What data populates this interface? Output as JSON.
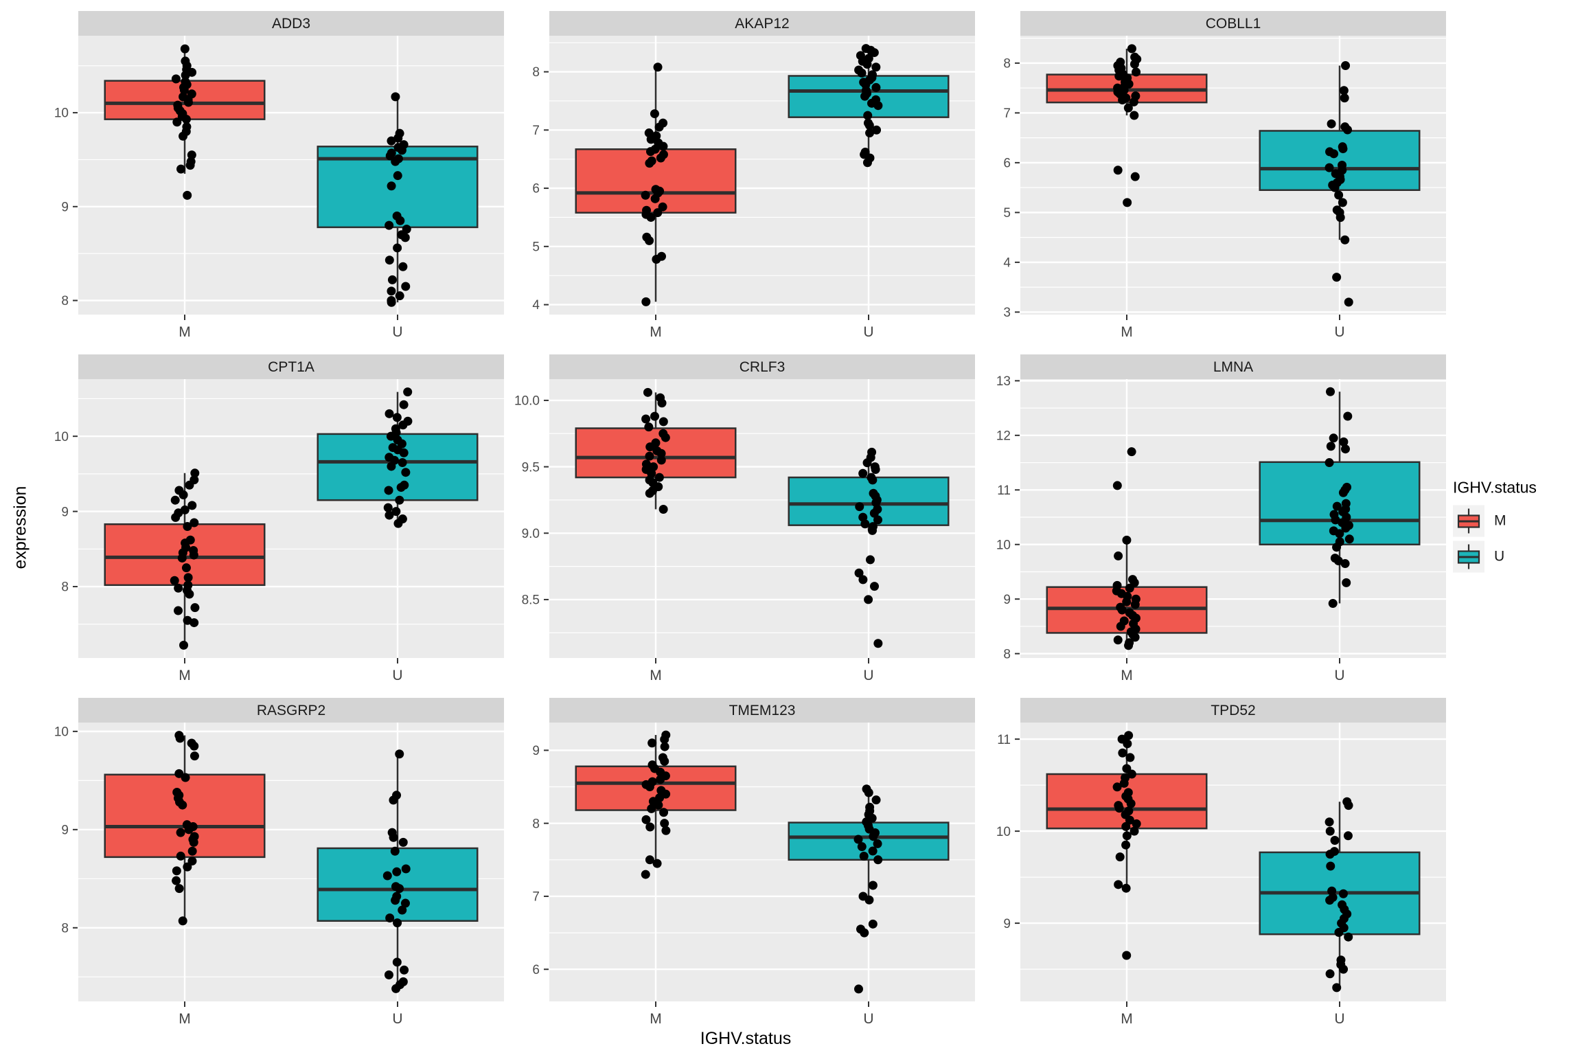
{
  "figure": {
    "ylab": "expression",
    "xlab": "IGHV.status",
    "legend": {
      "title": "IGHV.status",
      "entries": [
        {
          "label": "M",
          "color_key": "M"
        },
        {
          "label": "U",
          "color_key": "U"
        }
      ]
    }
  },
  "theme": {
    "panel_bg": "#EBEBEB",
    "strip_bg": "#D4D4D4",
    "grid_color": "#FFFFFF",
    "box_stroke": "#2E2E2E",
    "point_color": "#000000",
    "tick_text": "#4D4D4D",
    "cat_text": "#444444",
    "strip_text": "#1A1A1A",
    "legend_key_bg": "#F2F2F2",
    "series_colors": {
      "M": "#F0584F",
      "U": "#1CB4B9"
    }
  },
  "chart_data": {
    "type": "boxplot",
    "facet_by": "gene",
    "x": "IGHV.status",
    "y": "expression",
    "categories": [
      "M",
      "U"
    ],
    "legend_position": "right",
    "grid": true,
    "facets": [
      {
        "title": "ADD3",
        "ylim": [
          7.85,
          10.82
        ],
        "yticks": [
          8,
          9,
          10
        ],
        "tick_decimals": 0,
        "groups": [
          {
            "category": "M",
            "box": {
              "whisker_low": 9.35,
              "q1": 9.93,
              "median": 10.1,
              "q3": 10.34,
              "whisker_high": 10.68
            },
            "points": [
              10.68,
              10.55,
              10.5,
              10.46,
              10.43,
              10.4,
              10.36,
              10.33,
              10.3,
              10.27,
              10.24,
              10.2,
              10.17,
              10.14,
              10.11,
              10.08,
              10.05,
              10.02,
              9.99,
              9.96,
              9.93,
              9.9,
              9.85,
              9.8,
              9.75,
              9.55,
              9.48,
              9.44,
              9.4,
              9.12
            ]
          },
          {
            "category": "U",
            "box": {
              "whisker_low": 7.98,
              "q1": 8.78,
              "median": 9.51,
              "q3": 9.64,
              "whisker_high": 10.17
            },
            "points": [
              10.17,
              9.78,
              9.73,
              9.7,
              9.66,
              9.63,
              9.6,
              9.57,
              9.54,
              9.51,
              9.48,
              9.33,
              9.22,
              8.9,
              8.85,
              8.8,
              8.76,
              8.7,
              8.67,
              8.56,
              8.43,
              8.36,
              8.22,
              8.15,
              8.1,
              8.05,
              8.0,
              7.98
            ]
          }
        ]
      },
      {
        "title": "AKAP12",
        "ylim": [
          3.83,
          8.62
        ],
        "yticks": [
          4,
          5,
          6,
          7,
          8
        ],
        "tick_decimals": 0,
        "groups": [
          {
            "category": "M",
            "box": {
              "whisker_low": 4.05,
              "q1": 5.58,
              "median": 5.92,
              "q3": 6.67,
              "whisker_high": 8.08
            },
            "points": [
              8.08,
              7.28,
              7.12,
              7.05,
              6.95,
              6.9,
              6.84,
              6.78,
              6.72,
              6.67,
              6.63,
              6.58,
              6.52,
              6.47,
              6.43,
              5.98,
              5.95,
              5.92,
              5.88,
              5.82,
              5.68,
              5.62,
              5.58,
              5.55,
              5.5,
              5.16,
              5.1,
              4.83,
              4.78,
              4.05
            ]
          },
          {
            "category": "U",
            "box": {
              "whisker_low": 6.44,
              "q1": 7.22,
              "median": 7.67,
              "q3": 7.93,
              "whisker_high": 8.4
            },
            "points": [
              8.4,
              8.37,
              8.33,
              8.28,
              8.23,
              8.18,
              8.13,
              8.08,
              8.03,
              7.98,
              7.95,
              7.9,
              7.86,
              7.82,
              7.78,
              7.73,
              7.68,
              7.63,
              7.58,
              7.52,
              7.46,
              7.42,
              7.25,
              7.12,
              7.08,
              7.0,
              6.95,
              6.62,
              6.58,
              6.52,
              6.44
            ]
          }
        ]
      },
      {
        "title": "COBLL1",
        "ylim": [
          2.95,
          8.55
        ],
        "yticks": [
          3,
          4,
          5,
          6,
          7,
          8
        ],
        "tick_decimals": 0,
        "groups": [
          {
            "category": "M",
            "box": {
              "whisker_low": 6.95,
              "q1": 7.21,
              "median": 7.46,
              "q3": 7.77,
              "whisker_high": 8.29
            },
            "points": [
              8.29,
              8.12,
              8.08,
              8.02,
              7.98,
              7.95,
              7.9,
              7.86,
              7.82,
              7.78,
              7.74,
              7.7,
              7.66,
              7.62,
              7.58,
              7.54,
              7.5,
              7.46,
              7.42,
              7.38,
              7.34,
              7.3,
              7.26,
              7.22,
              7.1,
              6.95,
              5.85,
              5.72,
              5.2
            ]
          },
          {
            "category": "U",
            "box": {
              "whisker_low": 4.45,
              "q1": 5.45,
              "median": 5.88,
              "q3": 6.64,
              "whisker_high": 7.95
            },
            "points": [
              7.95,
              7.45,
              7.3,
              6.78,
              6.72,
              6.66,
              6.32,
              6.28,
              6.22,
              6.18,
              5.95,
              5.9,
              5.85,
              5.78,
              5.72,
              5.66,
              5.6,
              5.55,
              5.5,
              5.35,
              5.2,
              5.05,
              5.0,
              4.9,
              4.45,
              3.7,
              3.2
            ]
          }
        ]
      },
      {
        "title": "CPT1A",
        "ylim": [
          7.05,
          10.76
        ],
        "yticks": [
          8,
          9,
          10
        ],
        "tick_decimals": 0,
        "groups": [
          {
            "category": "M",
            "box": {
              "whisker_low": 7.22,
              "q1": 8.02,
              "median": 8.39,
              "q3": 8.83,
              "whisker_high": 9.51
            },
            "points": [
              9.51,
              9.42,
              9.35,
              9.28,
              9.22,
              9.15,
              9.08,
              9.02,
              8.98,
              8.92,
              8.85,
              8.8,
              8.62,
              8.58,
              8.52,
              8.48,
              8.45,
              8.42,
              8.38,
              8.25,
              8.12,
              8.08,
              8.02,
              7.98,
              7.95,
              7.9,
              7.72,
              7.68,
              7.55,
              7.52,
              7.22
            ]
          },
          {
            "category": "U",
            "box": {
              "whisker_low": 8.84,
              "q1": 9.15,
              "median": 9.66,
              "q3": 10.03,
              "whisker_high": 10.59
            },
            "points": [
              10.59,
              10.42,
              10.3,
              10.25,
              10.2,
              10.15,
              10.1,
              10.05,
              10.0,
              9.95,
              9.9,
              9.85,
              9.82,
              9.78,
              9.72,
              9.68,
              9.65,
              9.6,
              9.52,
              9.35,
              9.32,
              9.28,
              9.15,
              9.05,
              9.0,
              8.95,
              8.9,
              8.84
            ]
          }
        ]
      },
      {
        "title": "CRLF3",
        "ylim": [
          8.06,
          10.16
        ],
        "yticks": [
          8.5,
          9.0,
          9.5,
          10.0
        ],
        "tick_decimals": 1,
        "groups": [
          {
            "category": "M",
            "box": {
              "whisker_low": 9.18,
              "q1": 9.42,
              "median": 9.57,
              "q3": 9.79,
              "whisker_high": 10.06
            },
            "points": [
              10.06,
              10.02,
              9.98,
              9.88,
              9.86,
              9.84,
              9.8,
              9.75,
              9.72,
              9.68,
              9.65,
              9.62,
              9.6,
              9.58,
              9.55,
              9.52,
              9.5,
              9.48,
              9.45,
              9.42,
              9.4,
              9.38,
              9.35,
              9.32,
              9.3,
              9.18
            ]
          },
          {
            "category": "U",
            "box": {
              "whisker_low": 9.02,
              "q1": 9.06,
              "median": 9.22,
              "q3": 9.42,
              "whisker_high": 9.61
            },
            "points": [
              9.61,
              9.57,
              9.53,
              9.5,
              9.48,
              9.45,
              9.42,
              9.4,
              9.3,
              9.28,
              9.25,
              9.23,
              9.2,
              9.18,
              9.15,
              9.12,
              9.1,
              9.07,
              9.05,
              9.02,
              8.8,
              8.7,
              8.65,
              8.6,
              8.5,
              8.17
            ]
          }
        ]
      },
      {
        "title": "LMNA",
        "ylim": [
          7.92,
          13.03
        ],
        "yticks": [
          8,
          9,
          10,
          11,
          12,
          13
        ],
        "tick_decimals": 0,
        "groups": [
          {
            "category": "M",
            "box": {
              "whisker_low": 8.15,
              "q1": 8.38,
              "median": 8.83,
              "q3": 9.22,
              "whisker_high": 10.08
            },
            "points": [
              11.7,
              11.08,
              10.08,
              9.79,
              9.36,
              9.3,
              9.25,
              9.2,
              9.15,
              9.1,
              9.05,
              9.0,
              8.95,
              8.9,
              8.85,
              8.8,
              8.75,
              8.7,
              8.65,
              8.6,
              8.55,
              8.5,
              8.45,
              8.4,
              8.35,
              8.3,
              8.25,
              8.2,
              8.15
            ]
          },
          {
            "category": "U",
            "box": {
              "whisker_low": 8.92,
              "q1": 10.0,
              "median": 10.44,
              "q3": 11.51,
              "whisker_high": 12.8
            },
            "points": [
              12.8,
              12.35,
              11.95,
              11.88,
              11.8,
              11.75,
              11.5,
              11.05,
              11.0,
              10.95,
              10.75,
              10.7,
              10.65,
              10.6,
              10.55,
              10.5,
              10.45,
              10.4,
              10.35,
              10.3,
              10.25,
              10.2,
              10.1,
              10.05,
              9.95,
              9.75,
              9.7,
              9.65,
              9.3,
              8.92
            ]
          }
        ]
      },
      {
        "title": "RASGRP2",
        "ylim": [
          7.25,
          10.09
        ],
        "yticks": [
          8,
          9,
          10
        ],
        "tick_decimals": 0,
        "groups": [
          {
            "category": "M",
            "box": {
              "whisker_low": 8.07,
              "q1": 8.72,
              "median": 9.03,
              "q3": 9.56,
              "whisker_high": 9.96
            },
            "points": [
              9.96,
              9.93,
              9.88,
              9.85,
              9.75,
              9.57,
              9.53,
              9.38,
              9.35,
              9.32,
              9.28,
              9.25,
              9.05,
              9.03,
              9.0,
              8.97,
              8.93,
              8.9,
              8.87,
              8.78,
              8.73,
              8.68,
              8.62,
              8.58,
              8.48,
              8.4,
              8.07
            ]
          },
          {
            "category": "U",
            "box": {
              "whisker_low": 7.38,
              "q1": 8.07,
              "median": 8.39,
              "q3": 8.81,
              "whisker_high": 9.77
            },
            "points": [
              9.77,
              9.35,
              9.3,
              8.97,
              8.92,
              8.87,
              8.78,
              8.6,
              8.57,
              8.53,
              8.42,
              8.4,
              8.32,
              8.28,
              8.25,
              8.18,
              8.1,
              8.05,
              7.65,
              7.57,
              7.52,
              7.45,
              7.42,
              7.38
            ]
          }
        ]
      },
      {
        "title": "TMEM123",
        "ylim": [
          5.56,
          9.38
        ],
        "yticks": [
          6,
          7,
          8,
          9
        ],
        "tick_decimals": 0,
        "groups": [
          {
            "category": "M",
            "box": {
              "whisker_low": 7.5,
              "q1": 8.18,
              "median": 8.55,
              "q3": 8.78,
              "whisker_high": 9.21
            },
            "points": [
              9.21,
              9.15,
              9.1,
              9.05,
              8.9,
              8.85,
              8.8,
              8.75,
              8.7,
              8.65,
              8.6,
              8.57,
              8.53,
              8.5,
              8.45,
              8.4,
              8.35,
              8.3,
              8.25,
              8.2,
              8.15,
              8.05,
              8.0,
              7.95,
              7.9,
              7.5,
              7.45,
              7.3
            ]
          },
          {
            "category": "U",
            "box": {
              "whisker_low": 6.95,
              "q1": 7.5,
              "median": 7.81,
              "q3": 8.01,
              "whisker_high": 8.47
            },
            "points": [
              8.47,
              8.42,
              8.32,
              8.22,
              8.17,
              8.12,
              8.07,
              8.02,
              7.97,
              7.92,
              7.87,
              7.82,
              7.78,
              7.72,
              7.68,
              7.62,
              7.55,
              7.5,
              7.15,
              7.0,
              6.95,
              6.62,
              6.55,
              6.5,
              5.73
            ]
          }
        ]
      },
      {
        "title": "TPD52",
        "ylim": [
          8.15,
          11.18
        ],
        "yticks": [
          9,
          10,
          11
        ],
        "tick_decimals": 0,
        "groups": [
          {
            "category": "M",
            "box": {
              "whisker_low": 9.35,
              "q1": 10.03,
              "median": 10.24,
              "q3": 10.62,
              "whisker_high": 11.04
            },
            "points": [
              11.04,
              11.0,
              10.95,
              10.85,
              10.8,
              10.68,
              10.62,
              10.58,
              10.52,
              10.48,
              10.42,
              10.38,
              10.35,
              10.3,
              10.28,
              10.25,
              10.22,
              10.18,
              10.12,
              10.08,
              10.05,
              10.0,
              9.95,
              9.85,
              9.72,
              9.42,
              9.38,
              8.65
            ]
          },
          {
            "category": "U",
            "box": {
              "whisker_low": 8.3,
              "q1": 8.88,
              "median": 9.33,
              "q3": 9.77,
              "whisker_high": 10.32
            },
            "points": [
              10.32,
              10.28,
              10.1,
              10.0,
              9.95,
              9.9,
              9.78,
              9.75,
              9.62,
              9.35,
              9.32,
              9.28,
              9.25,
              9.2,
              9.15,
              9.1,
              9.05,
              9.0,
              8.95,
              8.9,
              8.85,
              8.6,
              8.55,
              8.5,
              8.45,
              8.3
            ]
          }
        ]
      }
    ]
  }
}
